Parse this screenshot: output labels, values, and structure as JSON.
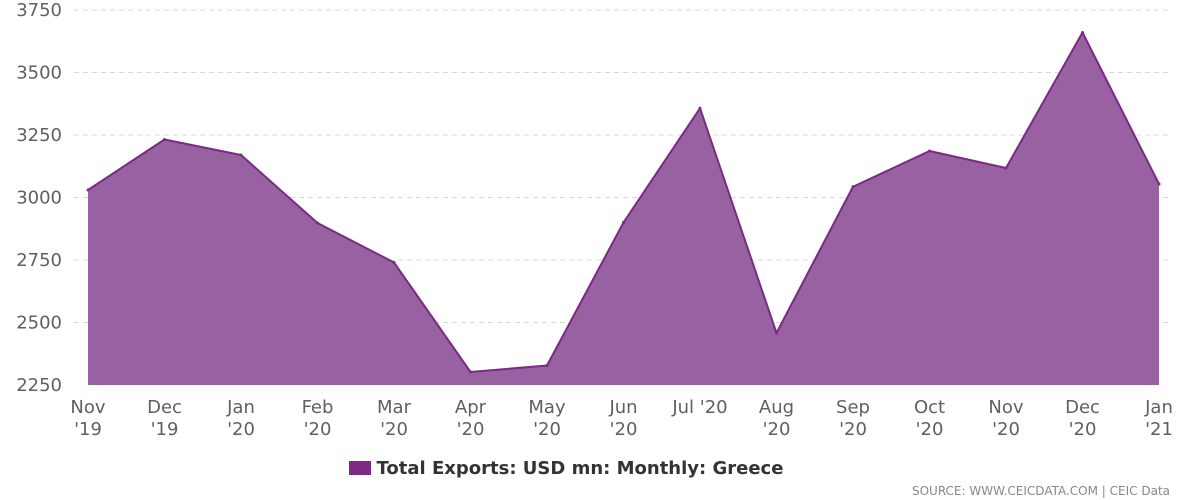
{
  "chart_data": {
    "type": "area",
    "x": [
      [
        "Nov",
        "'19"
      ],
      [
        "Dec",
        "'19"
      ],
      [
        "Jan",
        "'20"
      ],
      [
        "Feb",
        "'20"
      ],
      [
        "Mar",
        "'20"
      ],
      [
        "Apr",
        "'20"
      ],
      [
        "May",
        "'20"
      ],
      [
        "Jun",
        "'20"
      ],
      [
        "Jul '20",
        ""
      ],
      [
        "Aug",
        "'20"
      ],
      [
        "Sep",
        "'20"
      ],
      [
        "Oct",
        "'20"
      ],
      [
        "Nov",
        "'20"
      ],
      [
        "Dec",
        "'20"
      ],
      [
        "Jan",
        "'21"
      ]
    ],
    "series": [
      {
        "name": "Total Exports: USD mn: Monthly: Greece",
        "values": [
          3030,
          3232,
          3170,
          2898,
          2740,
          2302,
          2328,
          2900,
          3357,
          2458,
          3043,
          3186,
          3118,
          3660,
          3054
        ]
      }
    ],
    "yticks": [
      2250,
      2500,
      2750,
      3000,
      3250,
      3500,
      3750
    ],
    "ylim": [
      2250,
      3750
    ],
    "grid": true,
    "legend_position": "bottom",
    "colors": {
      "fill": "#9862a2",
      "line": "#7a2a82",
      "swatch": "#7a2a82"
    }
  },
  "legend": {
    "label": "Total Exports: USD mn: Monthly: Greece"
  },
  "source": "SOURCE: WWW.CEICDATA.COM | CEIC Data"
}
